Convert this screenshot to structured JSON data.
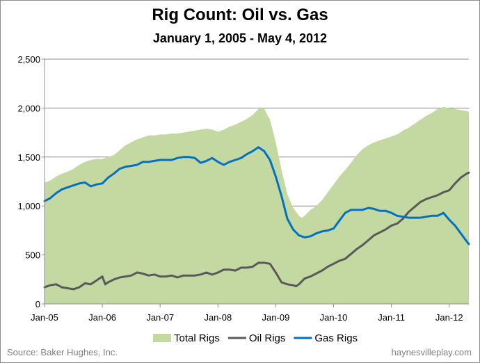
{
  "chart_data": {
    "type": "area+line",
    "title": "Rig Count: Oil vs. Gas",
    "subtitle": "January 1, 2005 - May 4, 2012",
    "ylim": [
      0,
      2500
    ],
    "y_ticks": [
      "0",
      "500",
      "1,000",
      "1,500",
      "2,000",
      "2,500"
    ],
    "y_tick_values": [
      0,
      500,
      1000,
      1500,
      2000,
      2500
    ],
    "x_ticks": [
      "Jan-05",
      "Jan-06",
      "Jan-07",
      "Jan-08",
      "Jan-09",
      "Jan-10",
      "Jan-11",
      "Jan-12"
    ],
    "x_tick_values": [
      2005.0,
      2006.0,
      2007.0,
      2008.0,
      2009.0,
      2010.0,
      2011.0,
      2012.0
    ],
    "xlim": [
      2005.0,
      2012.34
    ],
    "grid": "horizontal",
    "legend_position": "bottom",
    "series": [
      {
        "name": "Total Rigs",
        "kind": "area",
        "color": "#c4d9a1",
        "points": [
          [
            2005.0,
            1240
          ],
          [
            2005.1,
            1260
          ],
          [
            2005.2,
            1300
          ],
          [
            2005.3,
            1330
          ],
          [
            2005.4,
            1350
          ],
          [
            2005.5,
            1380
          ],
          [
            2005.6,
            1420
          ],
          [
            2005.7,
            1450
          ],
          [
            2005.8,
            1470
          ],
          [
            2005.9,
            1480
          ],
          [
            2006.0,
            1480
          ],
          [
            2006.1,
            1500
          ],
          [
            2006.2,
            1520
          ],
          [
            2006.3,
            1570
          ],
          [
            2006.4,
            1620
          ],
          [
            2006.5,
            1650
          ],
          [
            2006.6,
            1680
          ],
          [
            2006.7,
            1700
          ],
          [
            2006.8,
            1720
          ],
          [
            2006.9,
            1720
          ],
          [
            2007.0,
            1730
          ],
          [
            2007.1,
            1730
          ],
          [
            2007.2,
            1740
          ],
          [
            2007.3,
            1740
          ],
          [
            2007.4,
            1750
          ],
          [
            2007.5,
            1760
          ],
          [
            2007.6,
            1770
          ],
          [
            2007.7,
            1780
          ],
          [
            2007.8,
            1790
          ],
          [
            2007.9,
            1780
          ],
          [
            2008.0,
            1760
          ],
          [
            2008.1,
            1780
          ],
          [
            2008.2,
            1810
          ],
          [
            2008.3,
            1830
          ],
          [
            2008.4,
            1860
          ],
          [
            2008.5,
            1890
          ],
          [
            2008.6,
            1930
          ],
          [
            2008.7,
            1990
          ],
          [
            2008.75,
            2010
          ],
          [
            2008.8,
            1990
          ],
          [
            2008.9,
            1880
          ],
          [
            2009.0,
            1650
          ],
          [
            2009.1,
            1370
          ],
          [
            2009.2,
            1120
          ],
          [
            2009.3,
            980
          ],
          [
            2009.4,
            900
          ],
          [
            2009.45,
            880
          ],
          [
            2009.5,
            900
          ],
          [
            2009.6,
            960
          ],
          [
            2009.7,
            1000
          ],
          [
            2009.8,
            1060
          ],
          [
            2009.9,
            1140
          ],
          [
            2010.0,
            1220
          ],
          [
            2010.1,
            1300
          ],
          [
            2010.2,
            1370
          ],
          [
            2010.3,
            1440
          ],
          [
            2010.4,
            1520
          ],
          [
            2010.5,
            1580
          ],
          [
            2010.6,
            1620
          ],
          [
            2010.7,
            1650
          ],
          [
            2010.8,
            1670
          ],
          [
            2010.9,
            1690
          ],
          [
            2011.0,
            1710
          ],
          [
            2011.1,
            1730
          ],
          [
            2011.2,
            1770
          ],
          [
            2011.3,
            1800
          ],
          [
            2011.4,
            1840
          ],
          [
            2011.5,
            1880
          ],
          [
            2011.6,
            1920
          ],
          [
            2011.7,
            1950
          ],
          [
            2011.8,
            1990
          ],
          [
            2011.9,
            2010
          ],
          [
            2012.0,
            2000
          ],
          [
            2012.1,
            1990
          ],
          [
            2012.2,
            1980
          ],
          [
            2012.3,
            1970
          ],
          [
            2012.34,
            1960
          ]
        ]
      },
      {
        "name": "Oil Rigs",
        "kind": "line",
        "color": "#595959",
        "points": [
          [
            2005.0,
            170
          ],
          [
            2005.1,
            190
          ],
          [
            2005.2,
            200
          ],
          [
            2005.3,
            170
          ],
          [
            2005.4,
            160
          ],
          [
            2005.5,
            150
          ],
          [
            2005.6,
            170
          ],
          [
            2005.7,
            210
          ],
          [
            2005.8,
            200
          ],
          [
            2005.9,
            240
          ],
          [
            2006.0,
            280
          ],
          [
            2006.05,
            200
          ],
          [
            2006.1,
            220
          ],
          [
            2006.2,
            250
          ],
          [
            2006.3,
            270
          ],
          [
            2006.4,
            280
          ],
          [
            2006.5,
            290
          ],
          [
            2006.6,
            320
          ],
          [
            2006.7,
            310
          ],
          [
            2006.8,
            290
          ],
          [
            2006.9,
            300
          ],
          [
            2007.0,
            280
          ],
          [
            2007.1,
            280
          ],
          [
            2007.2,
            290
          ],
          [
            2007.3,
            270
          ],
          [
            2007.4,
            290
          ],
          [
            2007.5,
            290
          ],
          [
            2007.6,
            290
          ],
          [
            2007.7,
            300
          ],
          [
            2007.8,
            320
          ],
          [
            2007.9,
            300
          ],
          [
            2008.0,
            320
          ],
          [
            2008.1,
            350
          ],
          [
            2008.2,
            350
          ],
          [
            2008.3,
            340
          ],
          [
            2008.4,
            370
          ],
          [
            2008.5,
            370
          ],
          [
            2008.6,
            380
          ],
          [
            2008.7,
            420
          ],
          [
            2008.8,
            420
          ],
          [
            2008.9,
            410
          ],
          [
            2009.0,
            320
          ],
          [
            2009.1,
            220
          ],
          [
            2009.2,
            200
          ],
          [
            2009.3,
            190
          ],
          [
            2009.35,
            180
          ],
          [
            2009.4,
            200
          ],
          [
            2009.5,
            260
          ],
          [
            2009.6,
            280
          ],
          [
            2009.7,
            310
          ],
          [
            2009.8,
            340
          ],
          [
            2009.9,
            380
          ],
          [
            2010.0,
            410
          ],
          [
            2010.1,
            440
          ],
          [
            2010.2,
            460
          ],
          [
            2010.3,
            510
          ],
          [
            2010.4,
            560
          ],
          [
            2010.5,
            600
          ],
          [
            2010.6,
            650
          ],
          [
            2010.7,
            700
          ],
          [
            2010.8,
            730
          ],
          [
            2010.9,
            760
          ],
          [
            2011.0,
            800
          ],
          [
            2011.1,
            820
          ],
          [
            2011.2,
            870
          ],
          [
            2011.3,
            940
          ],
          [
            2011.4,
            990
          ],
          [
            2011.5,
            1040
          ],
          [
            2011.6,
            1070
          ],
          [
            2011.7,
            1090
          ],
          [
            2011.8,
            1110
          ],
          [
            2011.9,
            1140
          ],
          [
            2012.0,
            1160
          ],
          [
            2012.1,
            1230
          ],
          [
            2012.2,
            1290
          ],
          [
            2012.3,
            1330
          ],
          [
            2012.34,
            1340
          ]
        ]
      },
      {
        "name": "Gas Rigs",
        "kind": "line",
        "color": "#0070c0",
        "points": [
          [
            2005.0,
            1050
          ],
          [
            2005.1,
            1080
          ],
          [
            2005.2,
            1130
          ],
          [
            2005.3,
            1170
          ],
          [
            2005.4,
            1190
          ],
          [
            2005.5,
            1210
          ],
          [
            2005.6,
            1230
          ],
          [
            2005.7,
            1240
          ],
          [
            2005.8,
            1200
          ],
          [
            2005.9,
            1220
          ],
          [
            2006.0,
            1230
          ],
          [
            2006.1,
            1290
          ],
          [
            2006.2,
            1330
          ],
          [
            2006.3,
            1380
          ],
          [
            2006.4,
            1400
          ],
          [
            2006.5,
            1410
          ],
          [
            2006.6,
            1420
          ],
          [
            2006.7,
            1450
          ],
          [
            2006.8,
            1450
          ],
          [
            2006.9,
            1460
          ],
          [
            2007.0,
            1470
          ],
          [
            2007.1,
            1470
          ],
          [
            2007.2,
            1470
          ],
          [
            2007.3,
            1490
          ],
          [
            2007.4,
            1500
          ],
          [
            2007.5,
            1500
          ],
          [
            2007.6,
            1490
          ],
          [
            2007.7,
            1440
          ],
          [
            2007.8,
            1460
          ],
          [
            2007.9,
            1490
          ],
          [
            2008.0,
            1450
          ],
          [
            2008.1,
            1420
          ],
          [
            2008.2,
            1450
          ],
          [
            2008.3,
            1470
          ],
          [
            2008.4,
            1490
          ],
          [
            2008.5,
            1530
          ],
          [
            2008.6,
            1560
          ],
          [
            2008.7,
            1600
          ],
          [
            2008.8,
            1560
          ],
          [
            2008.9,
            1470
          ],
          [
            2009.0,
            1300
          ],
          [
            2009.1,
            1100
          ],
          [
            2009.2,
            870
          ],
          [
            2009.3,
            760
          ],
          [
            2009.4,
            700
          ],
          [
            2009.5,
            680
          ],
          [
            2009.6,
            690
          ],
          [
            2009.7,
            720
          ],
          [
            2009.8,
            740
          ],
          [
            2009.9,
            750
          ],
          [
            2010.0,
            770
          ],
          [
            2010.1,
            850
          ],
          [
            2010.2,
            930
          ],
          [
            2010.3,
            960
          ],
          [
            2010.4,
            960
          ],
          [
            2010.5,
            960
          ],
          [
            2010.6,
            980
          ],
          [
            2010.7,
            970
          ],
          [
            2010.8,
            950
          ],
          [
            2010.9,
            950
          ],
          [
            2011.0,
            930
          ],
          [
            2011.1,
            900
          ],
          [
            2011.2,
            890
          ],
          [
            2011.3,
            880
          ],
          [
            2011.4,
            880
          ],
          [
            2011.5,
            880
          ],
          [
            2011.6,
            890
          ],
          [
            2011.7,
            900
          ],
          [
            2011.8,
            900
          ],
          [
            2011.9,
            930
          ],
          [
            2012.0,
            860
          ],
          [
            2012.1,
            800
          ],
          [
            2012.2,
            720
          ],
          [
            2012.3,
            640
          ],
          [
            2012.34,
            610
          ]
        ]
      }
    ]
  },
  "footer": {
    "source": "Source: Baker Hughes, Inc.",
    "site": "haynesvilleplay.com"
  }
}
